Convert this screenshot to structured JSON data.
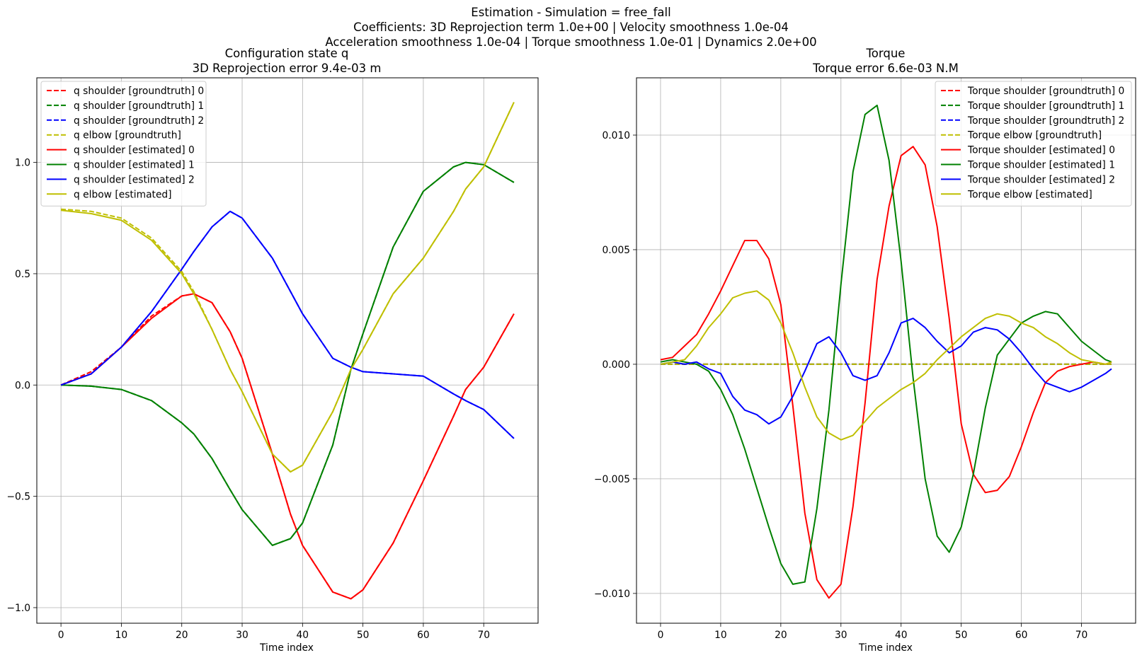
{
  "figure": {
    "suptitle": [
      "Estimation - Simulation = free_fall",
      "Coefficients: 3D Reprojection term 1.0e+00 | Velocity smoothness 1.0e-04",
      "Acceleration smoothness 1.0e-04 | Torque smoothness 1.0e-01 | Dynamics 2.0e+00"
    ]
  },
  "colors": {
    "red": "#ff0000",
    "green": "#008000",
    "blue": "#0000ff",
    "yellow": "#bfbf00",
    "grid": "#b0b0b0"
  },
  "chart_data": [
    {
      "type": "line",
      "title": [
        "Configuration state q",
        "3D Reprojection error 9.4e-03 m"
      ],
      "xlabel": "Time index",
      "ylabel": "",
      "xlim": [
        -4,
        79
      ],
      "ylim": [
        -1.07,
        1.38
      ],
      "xticks": [
        0,
        10,
        20,
        30,
        40,
        50,
        60,
        70
      ],
      "yticks": [
        -1.0,
        -0.5,
        0.0,
        0.5,
        1.0
      ],
      "ytick_labels": [
        "−1.0",
        "−0.5",
        "0.0",
        "0.5",
        "1.0"
      ],
      "grid": true,
      "legend_position": "upper left",
      "x": [
        0,
        5,
        10,
        15,
        20,
        22,
        25,
        28,
        30,
        35,
        38,
        40,
        45,
        48,
        50,
        55,
        60,
        65,
        67,
        70,
        75
      ],
      "series": [
        {
          "name": "q shoulder [groundtruth] 0",
          "color": "red",
          "dash": true,
          "values": [
            0.0,
            0.06,
            0.17,
            0.31,
            0.4,
            0.41,
            0.37,
            0.24,
            0.12,
            -0.31,
            -0.58,
            -0.72,
            -0.93,
            -0.96,
            -0.92,
            -0.71,
            -0.43,
            -0.14,
            -0.02,
            0.08,
            0.32
          ]
        },
        {
          "name": "q shoulder [groundtruth] 1",
          "color": "green",
          "dash": true,
          "values": [
            0.0,
            -0.005,
            -0.02,
            -0.07,
            -0.17,
            -0.22,
            -0.33,
            -0.47,
            -0.56,
            -0.72,
            -0.69,
            -0.62,
            -0.27,
            0.07,
            0.23,
            0.62,
            0.87,
            0.98,
            1.0,
            0.99,
            0.91
          ]
        },
        {
          "name": "q shoulder [groundtruth] 2",
          "color": "blue",
          "dash": true,
          "values": [
            0.0,
            0.05,
            0.17,
            0.33,
            0.52,
            0.6,
            0.71,
            0.78,
            0.75,
            0.57,
            0.42,
            0.32,
            0.12,
            0.08,
            0.06,
            0.05,
            0.04,
            -0.04,
            -0.07,
            -0.11,
            -0.24
          ]
        },
        {
          "name": "q elbow [groundtruth]",
          "color": "yellow",
          "dash": true,
          "values": [
            0.79,
            0.78,
            0.75,
            0.66,
            0.51,
            0.42,
            0.25,
            0.07,
            -0.03,
            -0.31,
            -0.39,
            -0.36,
            -0.12,
            0.07,
            0.16,
            0.41,
            0.57,
            0.78,
            0.88,
            0.98,
            1.27
          ]
        },
        {
          "name": "q shoulder [estimated] 0",
          "color": "red",
          "dash": false,
          "values": [
            0.0,
            0.05,
            0.17,
            0.3,
            0.4,
            0.41,
            0.37,
            0.24,
            0.12,
            -0.31,
            -0.58,
            -0.72,
            -0.93,
            -0.96,
            -0.92,
            -0.71,
            -0.43,
            -0.14,
            -0.02,
            0.08,
            0.32
          ]
        },
        {
          "name": "q shoulder [estimated] 1",
          "color": "green",
          "dash": false,
          "values": [
            0.0,
            -0.005,
            -0.02,
            -0.07,
            -0.17,
            -0.22,
            -0.33,
            -0.47,
            -0.56,
            -0.72,
            -0.69,
            -0.62,
            -0.27,
            0.07,
            0.23,
            0.62,
            0.87,
            0.98,
            1.0,
            0.99,
            0.91
          ]
        },
        {
          "name": "q shoulder [estimated] 2",
          "color": "blue",
          "dash": false,
          "values": [
            0.0,
            0.05,
            0.17,
            0.33,
            0.52,
            0.6,
            0.71,
            0.78,
            0.75,
            0.57,
            0.42,
            0.32,
            0.12,
            0.08,
            0.06,
            0.05,
            0.04,
            -0.04,
            -0.07,
            -0.11,
            -0.24
          ]
        },
        {
          "name": "q elbow [estimated]",
          "color": "yellow",
          "dash": false,
          "values": [
            0.785,
            0.77,
            0.74,
            0.65,
            0.5,
            0.41,
            0.25,
            0.07,
            -0.03,
            -0.31,
            -0.39,
            -0.36,
            -0.12,
            0.07,
            0.16,
            0.41,
            0.57,
            0.78,
            0.88,
            0.98,
            1.27
          ]
        }
      ]
    },
    {
      "type": "line",
      "title": [
        "Torque",
        "Torque error 6.6e-03 N.M"
      ],
      "xlabel": "Time index",
      "ylabel": "",
      "xlim": [
        -4,
        79
      ],
      "ylim": [
        -0.0113,
        0.0125
      ],
      "xticks": [
        0,
        10,
        20,
        30,
        40,
        50,
        60,
        70
      ],
      "yticks": [
        -0.01,
        -0.005,
        0.0,
        0.005,
        0.01
      ],
      "ytick_labels": [
        "−0.010",
        "−0.005",
        "0.000",
        "0.005",
        "0.010"
      ],
      "grid": true,
      "legend_position": "upper right",
      "x": [
        0,
        2,
        4,
        6,
        8,
        10,
        12,
        14,
        16,
        18,
        20,
        22,
        24,
        26,
        28,
        30,
        32,
        34,
        36,
        38,
        40,
        42,
        44,
        46,
        48,
        50,
        52,
        54,
        56,
        58,
        60,
        62,
        64,
        66,
        68,
        70,
        72,
        74,
        75
      ],
      "series": [
        {
          "name": "Torque shoulder [groundtruth] 0",
          "color": "red",
          "dash": true,
          "values": [
            0,
            0,
            0,
            0,
            0,
            0,
            0,
            0,
            0,
            0,
            0,
            0,
            0,
            0,
            0,
            0,
            0,
            0,
            0,
            0,
            0,
            0,
            0,
            0,
            0,
            0,
            0,
            0,
            0,
            0,
            0,
            0,
            0,
            0,
            0,
            0,
            0,
            0,
            0
          ]
        },
        {
          "name": "Torque shoulder [groundtruth] 1",
          "color": "green",
          "dash": true,
          "values": [
            0,
            0,
            0,
            0,
            0,
            0,
            0,
            0,
            0,
            0,
            0,
            0,
            0,
            0,
            0,
            0,
            0,
            0,
            0,
            0,
            0,
            0,
            0,
            0,
            0,
            0,
            0,
            0,
            0,
            0,
            0,
            0,
            0,
            0,
            0,
            0,
            0,
            0,
            0
          ]
        },
        {
          "name": "Torque shoulder [groundtruth] 2",
          "color": "blue",
          "dash": true,
          "values": [
            0,
            0,
            0,
            0,
            0,
            0,
            0,
            0,
            0,
            0,
            0,
            0,
            0,
            0,
            0,
            0,
            0,
            0,
            0,
            0,
            0,
            0,
            0,
            0,
            0,
            0,
            0,
            0,
            0,
            0,
            0,
            0,
            0,
            0,
            0,
            0,
            0,
            0,
            0
          ]
        },
        {
          "name": "Torque elbow [groundtruth]",
          "color": "yellow",
          "dash": true,
          "values": [
            0,
            0,
            0,
            0,
            0,
            0,
            0,
            0,
            0,
            0,
            0,
            0,
            0,
            0,
            0,
            0,
            0,
            0,
            0,
            0,
            0,
            0,
            0,
            0,
            0,
            0,
            0,
            0,
            0,
            0,
            0,
            0,
            0,
            0,
            0,
            0,
            0,
            0,
            0
          ]
        },
        {
          "name": "Torque shoulder [estimated] 0",
          "color": "red",
          "dash": false,
          "values": [
            0.0002,
            0.0003,
            0.0008,
            0.0013,
            0.0022,
            0.0032,
            0.0043,
            0.0054,
            0.0054,
            0.0046,
            0.0026,
            -0.0018,
            -0.0065,
            -0.0094,
            -0.0102,
            -0.0096,
            -0.0062,
            -0.0017,
            0.0037,
            0.0069,
            0.0091,
            0.0095,
            0.0087,
            0.006,
            0.002,
            -0.0026,
            -0.0048,
            -0.0056,
            -0.0055,
            -0.0049,
            -0.0036,
            -0.0021,
            -0.0008,
            -0.0003,
            -0.0001,
            0.0,
            0.0001,
            0.0,
            0.0001
          ]
        },
        {
          "name": "Torque shoulder [estimated] 1",
          "color": "green",
          "dash": false,
          "values": [
            0.0001,
            0.0002,
            0.0001,
            0.0,
            -0.0003,
            -0.0011,
            -0.0022,
            -0.0037,
            -0.0054,
            -0.0071,
            -0.0087,
            -0.0096,
            -0.0095,
            -0.0063,
            -0.002,
            0.0035,
            0.0084,
            0.0109,
            0.0113,
            0.0089,
            0.0045,
            -0.0006,
            -0.005,
            -0.0075,
            -0.0082,
            -0.0071,
            -0.0048,
            -0.0019,
            0.0004,
            0.0011,
            0.0018,
            0.0021,
            0.0023,
            0.0022,
            0.0016,
            0.001,
            0.0006,
            0.0002,
            0.0001
          ]
        },
        {
          "name": "Torque shoulder [estimated] 2",
          "color": "blue",
          "dash": false,
          "values": [
            0.0,
            0.0001,
            0.0,
            0.0001,
            -0.0002,
            -0.0004,
            -0.0014,
            -0.002,
            -0.0022,
            -0.0026,
            -0.0023,
            -0.0014,
            -0.0003,
            0.0009,
            0.0012,
            0.0005,
            -0.0005,
            -0.0007,
            -0.0005,
            0.0005,
            0.0018,
            0.002,
            0.0016,
            0.001,
            0.0005,
            0.0008,
            0.0014,
            0.0016,
            0.0015,
            0.0011,
            0.0005,
            -0.0002,
            -0.0008,
            -0.001,
            -0.0012,
            -0.001,
            -0.0007,
            -0.0004,
            -0.0002
          ]
        },
        {
          "name": "Torque elbow [estimated]",
          "color": "yellow",
          "dash": false,
          "values": [
            0.0,
            0.0001,
            0.0002,
            0.0008,
            0.0016,
            0.0022,
            0.0029,
            0.0031,
            0.0032,
            0.0028,
            0.0018,
            0.0005,
            -0.001,
            -0.0023,
            -0.003,
            -0.0033,
            -0.0031,
            -0.0025,
            -0.0019,
            -0.0015,
            -0.0011,
            -0.0008,
            -0.0004,
            0.0002,
            0.0007,
            0.0012,
            0.0016,
            0.002,
            0.0022,
            0.0021,
            0.0018,
            0.0016,
            0.0012,
            0.0009,
            0.0005,
            0.0002,
            0.0001,
            0.0,
            0.0001
          ]
        }
      ]
    }
  ]
}
